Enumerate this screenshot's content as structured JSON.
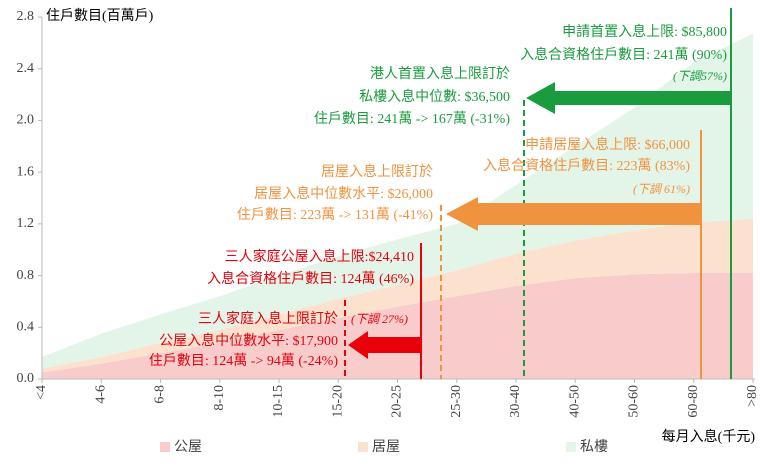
{
  "chart_data": {
    "type": "area",
    "ylabel": "住戶數目(百萬戶)",
    "xlabel": "每月入息(千元)",
    "categories": [
      "<4",
      "4-6",
      "6-8",
      "8-10",
      "10-15",
      "15-20",
      "20-25",
      "25-30",
      "30-40",
      "40-50",
      "50-60",
      "60-80",
      ">80"
    ],
    "stacked": true,
    "series": [
      {
        "name": "公屋",
        "color": "#f9cccc",
        "values": [
          0.05,
          0.12,
          0.2,
          0.28,
          0.38,
          0.47,
          0.56,
          0.64,
          0.72,
          0.78,
          0.81,
          0.82,
          0.82
        ]
      },
      {
        "name": "居屋",
        "color": "#fce1cf",
        "values": [
          0.03,
          0.05,
          0.08,
          0.1,
          0.12,
          0.15,
          0.17,
          0.2,
          0.25,
          0.29,
          0.34,
          0.39,
          0.42
        ]
      },
      {
        "name": "私樓",
        "color": "#e3f5e9",
        "values": [
          0.09,
          0.18,
          0.22,
          0.26,
          0.3,
          0.33,
          0.35,
          0.36,
          0.53,
          0.73,
          0.95,
          1.24,
          1.43
        ]
      }
    ],
    "ylim": [
      0,
      2.8
    ],
    "yticks": [
      {
        "value": 0,
        "label": "0.0"
      },
      0.4,
      0.8,
      1.2,
      1.6,
      {
        "value": 2,
        "label": "2.0"
      },
      2.4,
      2.8
    ],
    "grid": false,
    "annotations": [
      "申請首置入息上限: $85,800",
      "入息合資格住戶數目: 241萬 (90%)",
      "(下調57%)",
      "港人首置入息上限訂於",
      "私樓入息中位數: $36,500",
      "住戶數目: 241萬 -> 167萬 (-31%)",
      "申請居屋入息上限: $66,000",
      "入息合資格住戶數目: 223萬 (83%)",
      "(下調 61%)",
      "居屋入息上限訂於",
      "居屋入息中位數水平: $26,000",
      "住戶數目: 223萬 -> 131萬 (-41%)",
      "三人家庭公屋入息上限:$24,410",
      "入息合資格住戶數目: 124萬 (46%)",
      "(下調 27%)",
      "三人家庭入息上限訂於",
      "公屋入息中位數水平: $17,900",
      "住戶數目: 124萬 -> 94萬 (-24%)"
    ]
  }
}
